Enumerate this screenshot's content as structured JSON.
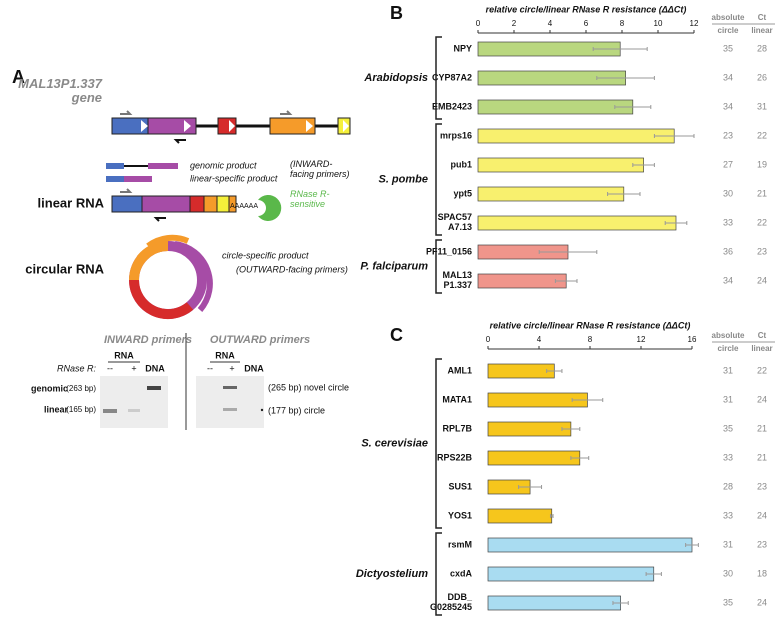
{
  "panel_a": {
    "letter": "A",
    "gene_label": "MAL13P1.337\ngene",
    "genomic_product": "genomic product",
    "linear_product": "linear-specific product",
    "inward_note": "(INWARD-\nfacing primers)",
    "linear_rna": "linear RNA",
    "poly_a": "AAAAAA",
    "rnase_note": "RNase R-\nsensitive",
    "circular_rna": "circular RNA",
    "circle_product": "circle-specific product",
    "outward_note": "(OUTWARD-facing primers)",
    "gel": {
      "inward_title": "INWARD primers",
      "outward_title": "OUTWARD primers",
      "rna_inward": "RNA",
      "rna_outward": "RNA",
      "rnase_label": "RNase R:",
      "lanes_inward": [
        "--",
        "+",
        "DNA"
      ],
      "lanes_outward": [
        "--",
        "+",
        "DNA"
      ],
      "genomic": "genomic",
      "genomic_size": "(263 bp)",
      "linear": "linear",
      "linear_size": "(165 bp)",
      "novel_circle": "(265 bp) novel circle",
      "circle": "(177 bp) circle"
    }
  },
  "chart_data": [
    {
      "type": "bar",
      "letter": "B",
      "title": "relative circle/linear RNase R resistance (ΔΔCt)",
      "xlim": [
        0,
        12
      ],
      "xticks": [
        0,
        2,
        4,
        6,
        8,
        10,
        12
      ],
      "ct_header": [
        "absolute",
        "Ct"
      ],
      "ct_columns": [
        "circle",
        "linear"
      ],
      "series": [
        {
          "name": "Arabidopsis",
          "color": "#b9d77f",
          "categories": [
            "NPY",
            "CYP87A2",
            "EMB2423"
          ],
          "values": [
            7.9,
            8.2,
            8.6
          ],
          "errors": [
            1.5,
            1.6,
            1.0
          ],
          "circle_ct": [
            35,
            34,
            34
          ],
          "linear_ct": [
            28,
            26,
            31
          ]
        },
        {
          "name": "S. pombe",
          "color": "#f8f06e",
          "categories": [
            "mrps16",
            "pub1",
            "ypt5",
            "SPAC57\nA7.13"
          ],
          "values": [
            10.9,
            9.2,
            8.1,
            11.0
          ],
          "errors": [
            1.1,
            0.6,
            0.9,
            0.6
          ],
          "circle_ct": [
            23,
            27,
            30,
            33
          ],
          "linear_ct": [
            22,
            19,
            21,
            22
          ]
        },
        {
          "name": "P. falciparum",
          "color": "#f0958b",
          "categories": [
            "PF11_0156",
            "MAL13\nP1.337"
          ],
          "values": [
            5.0,
            4.9
          ],
          "errors": [
            1.6,
            0.6
          ],
          "circle_ct": [
            36,
            34
          ],
          "linear_ct": [
            23,
            24
          ]
        }
      ]
    },
    {
      "type": "bar",
      "letter": "C",
      "title": "relative circle/linear RNase R resistance (ΔΔCt)",
      "xlim": [
        0,
        16
      ],
      "xticks": [
        0,
        4,
        8,
        12,
        16
      ],
      "ct_header": [
        "absolute",
        "Ct"
      ],
      "ct_columns": [
        "circle",
        "linear"
      ],
      "series": [
        {
          "name": "S. cerevisiae",
          "color": "#f6c61c",
          "categories": [
            "AML1",
            "MATA1",
            "RPL7B",
            "RPS22B",
            "SUS1",
            "YOS1"
          ],
          "values": [
            5.2,
            7.8,
            6.5,
            7.2,
            3.3,
            5.0
          ],
          "errors": [
            0.6,
            1.2,
            0.7,
            0.7,
            0.9,
            0.1
          ],
          "circle_ct": [
            31,
            31,
            35,
            33,
            28,
            33
          ],
          "linear_ct": [
            22,
            24,
            21,
            21,
            23,
            24
          ]
        },
        {
          "name": "Dictyostelium",
          "color": "#a9dcf1",
          "categories": [
            "rsmM",
            "cxdA",
            "DDB_\nG0285245"
          ],
          "values": [
            16.0,
            13.0,
            10.4
          ],
          "errors": [
            0.5,
            0.6,
            0.6
          ],
          "circle_ct": [
            31,
            30,
            35
          ],
          "linear_ct": [
            23,
            18,
            24
          ]
        }
      ]
    }
  ]
}
